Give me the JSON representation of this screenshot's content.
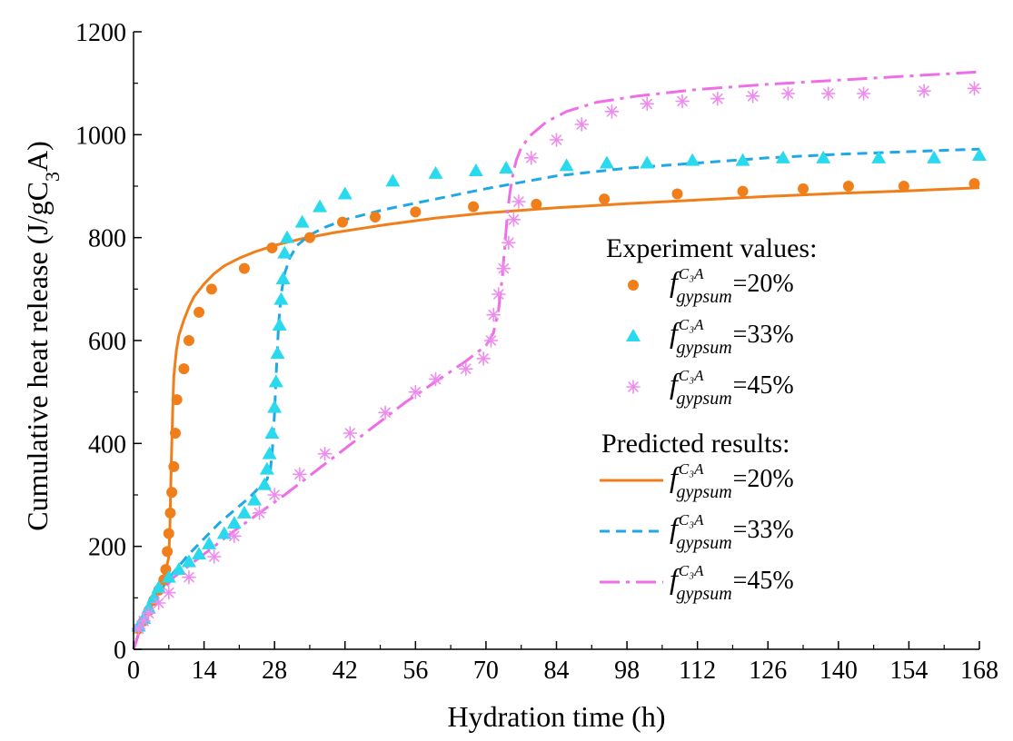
{
  "chart_data": {
    "type": "line",
    "title": "",
    "xlabel": "Hydration time (h)",
    "ylabel_main": "Cumulative heat release (J/gC",
    "ylabel_sub": "3",
    "ylabel_end": "A)",
    "xlim": [
      0,
      168
    ],
    "ylim": [
      0,
      1200
    ],
    "xticks": [
      0,
      14,
      28,
      42,
      56,
      70,
      84,
      98,
      112,
      126,
      140,
      154,
      168
    ],
    "yticks": [
      0,
      200,
      400,
      600,
      800,
      1000,
      1200
    ],
    "grid": false,
    "legend": {
      "placement": "center-right",
      "experiment_header": "Experiment values:",
      "predicted_header": "Predicted results:",
      "symbol_main": "f",
      "symbol_sup": "C₃A",
      "symbol_sub": "gypsum"
    },
    "experiment_series": [
      {
        "name": "=20%",
        "marker": "circle",
        "color": "#f07f1b",
        "x": [
          1,
          2,
          3,
          4,
          5,
          6,
          6.4,
          6.7,
          7,
          7.3,
          7.6,
          8,
          8.3,
          8.6,
          10,
          11,
          13,
          15.5,
          22,
          27.5,
          35,
          41.5,
          48,
          56,
          67.5,
          80,
          93.5,
          108,
          121,
          133,
          142,
          153,
          167
        ],
        "y": [
          40,
          55,
          75,
          95,
          115,
          135,
          155,
          190,
          225,
          265,
          305,
          355,
          420,
          485,
          545,
          600,
          655,
          700,
          740,
          780,
          800,
          830,
          840,
          850,
          860,
          865,
          875,
          885,
          890,
          895,
          900,
          900,
          905
        ]
      },
      {
        "name": "=33%",
        "marker": "triangle",
        "color": "#29d9ed",
        "x": [
          1,
          2,
          3,
          4,
          5,
          7,
          9,
          11,
          13,
          15,
          18,
          20,
          22,
          24,
          26,
          26.5,
          27,
          27.5,
          28,
          28.3,
          28.6,
          29,
          29.3,
          29.7,
          30,
          30.5,
          33.5,
          37,
          42,
          51.5,
          60,
          68,
          74,
          86,
          94,
          102,
          111,
          121,
          129,
          137,
          148,
          159,
          168
        ],
        "y": [
          45,
          60,
          80,
          100,
          120,
          140,
          155,
          170,
          185,
          205,
          225,
          245,
          265,
          290,
          320,
          350,
          380,
          420,
          470,
          520,
          575,
          630,
          680,
          720,
          770,
          800,
          830,
          860,
          885,
          910,
          925,
          930,
          935,
          940,
          945,
          945,
          950,
          950,
          955,
          955,
          955,
          955,
          960
        ]
      },
      {
        "name": "=45%",
        "marker": "asterisk",
        "color": "#ee8cee",
        "x": [
          1,
          2,
          3,
          5,
          7,
          11,
          16,
          20,
          25,
          28,
          33,
          38,
          43,
          50,
          56,
          60,
          66,
          69.5,
          71,
          71.5,
          72.5,
          73.5,
          74.5,
          75.5,
          76.5,
          79,
          84,
          89,
          95,
          102,
          109,
          116,
          123,
          130,
          138,
          145,
          157,
          167
        ],
        "y": [
          40,
          55,
          70,
          90,
          110,
          140,
          180,
          220,
          265,
          300,
          340,
          380,
          420,
          460,
          500,
          525,
          545,
          565,
          600,
          650,
          690,
          740,
          790,
          835,
          870,
          955,
          990,
          1020,
          1045,
          1060,
          1065,
          1070,
          1075,
          1080,
          1080,
          1080,
          1085,
          1090
        ]
      }
    ],
    "predicted_series": [
      {
        "name": "=20%",
        "line": "solid",
        "color": "#f07f1b",
        "x": [
          0,
          2,
          4,
          5,
          6,
          6.5,
          7,
          7.2,
          7.4,
          7.6,
          7.8,
          8,
          8.5,
          9,
          10,
          11,
          12,
          14,
          16,
          18,
          21,
          24,
          28,
          33,
          40,
          50,
          60,
          70,
          84,
          98,
          112,
          126,
          140,
          154,
          168
        ],
        "y": [
          0,
          60,
          100,
          120,
          140,
          155,
          180,
          230,
          320,
          400,
          470,
          530,
          580,
          610,
          640,
          665,
          685,
          710,
          730,
          745,
          760,
          772,
          785,
          797,
          810,
          825,
          838,
          848,
          858,
          866,
          873,
          880,
          886,
          891,
          897
        ]
      },
      {
        "name": "=33%",
        "line": "dashed",
        "color": "#1fa7e6",
        "x": [
          0,
          2,
          5,
          8,
          11,
          14,
          17,
          20,
          23,
          25,
          26.5,
          27.2,
          27.6,
          28,
          28.4,
          28.8,
          29.3,
          30,
          31,
          32.5,
          35,
          38,
          42,
          50,
          60,
          70,
          84,
          98,
          112,
          126,
          140,
          154,
          168
        ],
        "y": [
          0,
          60,
          110,
          150,
          185,
          215,
          245,
          270,
          295,
          315,
          330,
          350,
          390,
          460,
          550,
          630,
          690,
          730,
          760,
          785,
          805,
          820,
          835,
          855,
          875,
          895,
          920,
          935,
          945,
          955,
          962,
          967,
          972
        ]
      },
      {
        "name": "=45%",
        "line": "dashdot",
        "color": "#ee6ee8",
        "x": [
          0,
          2,
          5,
          8,
          12,
          16,
          20,
          25,
          30,
          36,
          42,
          48,
          54,
          60,
          66,
          70,
          71.5,
          72.5,
          73.2,
          73.8,
          74.3,
          74.8,
          75.3,
          76,
          77,
          79,
          82,
          86,
          92,
          100,
          112,
          126,
          140,
          154,
          168
        ],
        "y": [
          0,
          60,
          105,
          140,
          170,
          200,
          230,
          265,
          300,
          345,
          390,
          435,
          480,
          520,
          560,
          590,
          615,
          660,
          720,
          790,
          850,
          890,
          920,
          950,
          975,
          1000,
          1025,
          1045,
          1063,
          1075,
          1088,
          1098,
          1106,
          1114,
          1122
        ]
      }
    ]
  }
}
